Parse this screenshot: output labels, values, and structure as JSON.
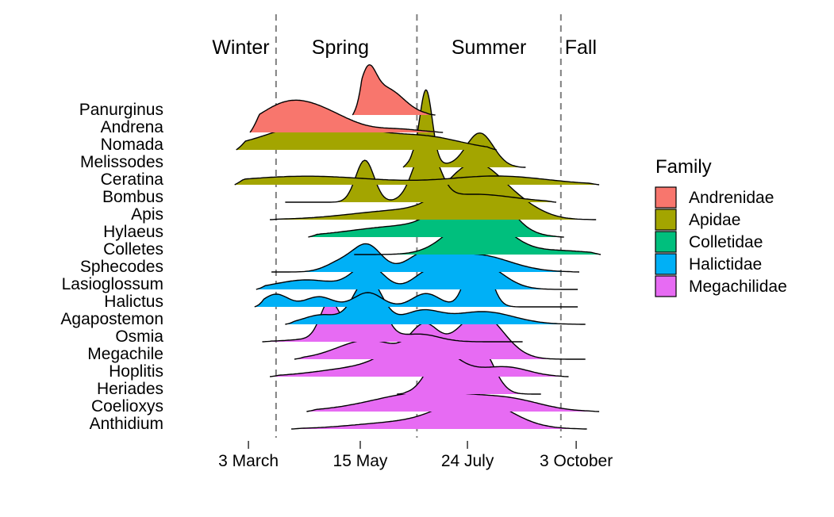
{
  "chart_data": {
    "type": "ridgeline",
    "x_domain": [
      35,
      292
    ],
    "x_ticks": [
      {
        "label": "3 March",
        "day": 62
      },
      {
        "label": "15 May",
        "day": 135
      },
      {
        "label": "24 July",
        "day": 205
      },
      {
        "label": "3 October",
        "day": 276
      }
    ],
    "season_boundaries": [
      80,
      172,
      266
    ],
    "seasons": [
      {
        "label": "Winter",
        "day": 57
      },
      {
        "label": "Spring",
        "day": 122
      },
      {
        "label": "Summer",
        "day": 219
      },
      {
        "label": "Fall",
        "day": 279
      }
    ],
    "legend": {
      "title": "Family",
      "position": "right",
      "entries": [
        {
          "label": "Andrenidae",
          "color": "#F8766D"
        },
        {
          "label": "Apidae",
          "color": "#A3A500"
        },
        {
          "label": "Colletidae",
          "color": "#00BF7D"
        },
        {
          "label": "Halictidae",
          "color": "#00B0F6"
        },
        {
          "label": "Megachilidae",
          "color": "#E76BF3"
        }
      ]
    },
    "series": [
      {
        "name": "Panurginus",
        "family": "Andrenidae",
        "range": [
          130,
          184
        ],
        "peaks": [
          [
            140,
            5,
            1.0
          ],
          [
            151,
            12,
            0.85
          ],
          [
            126,
            4,
            0.3
          ]
        ]
      },
      {
        "name": "Andrena",
        "family": "Andrenidae",
        "range": [
          63,
          189
        ],
        "peaks": [
          [
            87,
            19,
            0.86
          ],
          [
            115,
            18,
            0.42
          ],
          [
            160,
            14,
            0.1
          ]
        ]
      },
      {
        "name": "Nomada",
        "family": "Apidae",
        "range": [
          54,
          224
        ],
        "peaks": [
          [
            110,
            33,
            0.87
          ],
          [
            180,
            23,
            0.35
          ]
        ]
      },
      {
        "name": "Melissodes",
        "family": "Apidae",
        "range": [
          163,
          243
        ],
        "peaks": [
          [
            178,
            4,
            2.2
          ],
          [
            213,
            9,
            1.08
          ],
          [
            170,
            12,
            0.3
          ]
        ]
      },
      {
        "name": "Ceratina",
        "family": "Apidae",
        "range": [
          53,
          291
        ],
        "peaks": [
          [
            100,
            45,
            0.27
          ],
          [
            225,
            32,
            0.27
          ]
        ]
      },
      {
        "name": "Bombus",
        "family": "Apidae",
        "range": [
          86,
          263
        ],
        "peaks": [
          [
            138,
            6,
            1.32
          ],
          [
            178,
            8,
            1.74
          ],
          [
            210,
            25,
            0.25
          ]
        ]
      },
      {
        "name": "Apis",
        "family": "Apidae",
        "range": [
          76,
          289
        ],
        "peaks": [
          [
            210,
            18,
            1.62
          ],
          [
            165,
            35,
            0.3
          ],
          [
            240,
            15,
            0.3
          ]
        ]
      },
      {
        "name": "Hylaeus",
        "family": "Colletidae",
        "range": [
          101,
          268
        ],
        "peaks": [
          [
            210,
            17,
            2.15
          ],
          [
            165,
            35,
            0.35
          ]
        ]
      },
      {
        "name": "Colletes",
        "family": "Colletidae",
        "range": [
          131,
          292
        ],
        "peaks": [
          [
            212,
            18,
            1.28
          ],
          [
            265,
            20,
            0.12
          ]
        ]
      },
      {
        "name": "Sphecodes",
        "family": "Halictidae",
        "range": [
          77,
          278
        ],
        "peaks": [
          [
            123,
            10,
            0.32
          ],
          [
            140,
            9,
            0.8
          ],
          [
            178,
            12,
            0.5
          ],
          [
            210,
            22,
            0.55
          ]
        ]
      },
      {
        "name": "Lasioglossum",
        "family": "Halictidae",
        "range": [
          67,
          277
        ],
        "peaks": [
          [
            140,
            10,
            0.75
          ],
          [
            180,
            10,
            0.55
          ],
          [
            212,
            15,
            0.85
          ],
          [
            100,
            20,
            0.3
          ]
        ]
      },
      {
        "name": "Halictus",
        "family": "Halictidae",
        "range": [
          66,
          277
        ],
        "peaks": [
          [
            80,
            8,
            0.4
          ],
          [
            108,
            9,
            0.32
          ],
          [
            140,
            9,
            0.45
          ],
          [
            178,
            9,
            0.42
          ],
          [
            212,
            7,
            2.0
          ]
        ]
      },
      {
        "name": "Agapostemon",
        "family": "Halictidae",
        "range": [
          86,
          282
        ],
        "peaks": [
          [
            110,
            12,
            0.3
          ],
          [
            140,
            9,
            1.45
          ],
          [
            175,
            12,
            0.4
          ],
          [
            215,
            20,
            0.4
          ]
        ]
      },
      {
        "name": "Osmia",
        "family": "Megachilidae",
        "range": [
          71,
          241
        ],
        "peaks": [
          [
            115,
            6,
            1.13
          ],
          [
            141,
            8,
            1.95
          ],
          [
            130,
            25,
            0.2
          ],
          [
            175,
            12,
            0.2
          ]
        ]
      },
      {
        "name": "Megachile",
        "family": "Megachilidae",
        "range": [
          92,
          282
        ],
        "peaks": [
          [
            140,
            20,
            0.6
          ],
          [
            177,
            9,
            0.95
          ],
          [
            213,
            15,
            1.45
          ]
        ]
      },
      {
        "name": "Hoplitis",
        "family": "Megachilidae",
        "range": [
          76,
          271
        ],
        "peaks": [
          [
            175,
            18,
            1.2
          ],
          [
            140,
            30,
            0.3
          ],
          [
            230,
            15,
            0.3
          ]
        ]
      },
      {
        "name": "Heriades",
        "family": "Megachilidae",
        "range": [
          159,
          253
        ],
        "peaks": [
          [
            190,
            10,
            1.47
          ],
          [
            213,
            9,
            1.45
          ]
        ]
      },
      {
        "name": "Coelioxys",
        "family": "Megachilidae",
        "range": [
          100,
          291
        ],
        "peaks": [
          [
            180,
            35,
            0.62
          ],
          [
            235,
            20,
            0.25
          ]
        ]
      },
      {
        "name": "Anthidium",
        "family": "Megachilidae",
        "range": [
          90,
          283
        ],
        "peaks": [
          [
            210,
            22,
            0.94
          ],
          [
            160,
            30,
            0.2
          ]
        ]
      }
    ]
  }
}
